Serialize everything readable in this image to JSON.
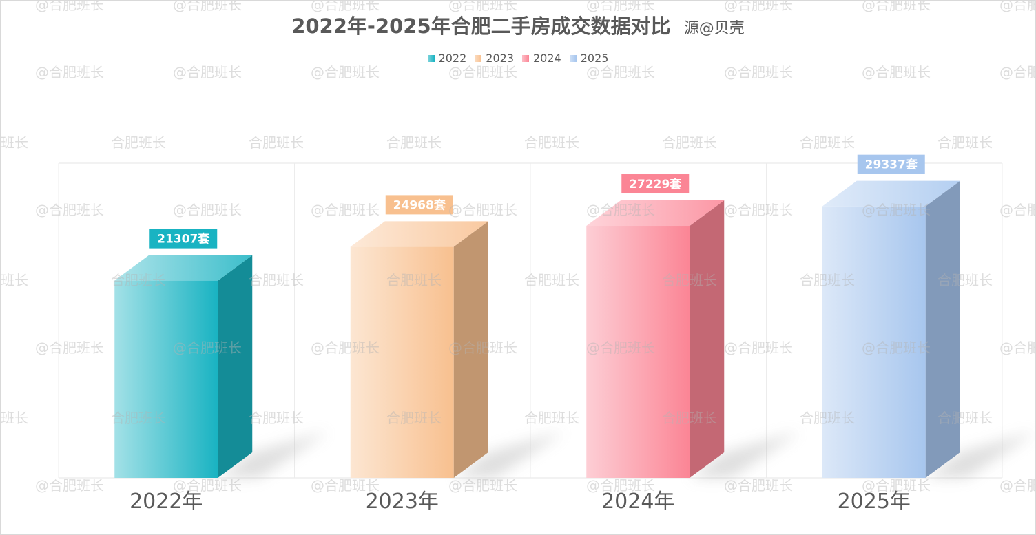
{
  "chart_data": {
    "type": "bar",
    "title": "2022年-2025年合肥二手房成交数据对比",
    "subtitle": "源@贝壳",
    "categories": [
      "2022年",
      "2023年",
      "2024年",
      "2025年"
    ],
    "values": [
      21307,
      24968,
      27229,
      29337
    ],
    "value_unit": "套",
    "data_labels": [
      "21307套",
      "24968套",
      "27229套",
      "29337套"
    ],
    "legend": [
      "2022",
      "2023",
      "2024",
      "2025"
    ],
    "legend_position": "top",
    "ylim": [
      0,
      34000
    ],
    "colors": [
      "#19b3c2",
      "#f8c08f",
      "#fb8595",
      "#a7c6ee"
    ],
    "label_text_colors": [
      "#ffffff",
      "#ffffff",
      "#ffffff",
      "#ffffff"
    ],
    "grid": true,
    "style": "3d-column"
  },
  "watermark": {
    "text_a": "@合肥班长",
    "text_b": "合肥班长"
  }
}
